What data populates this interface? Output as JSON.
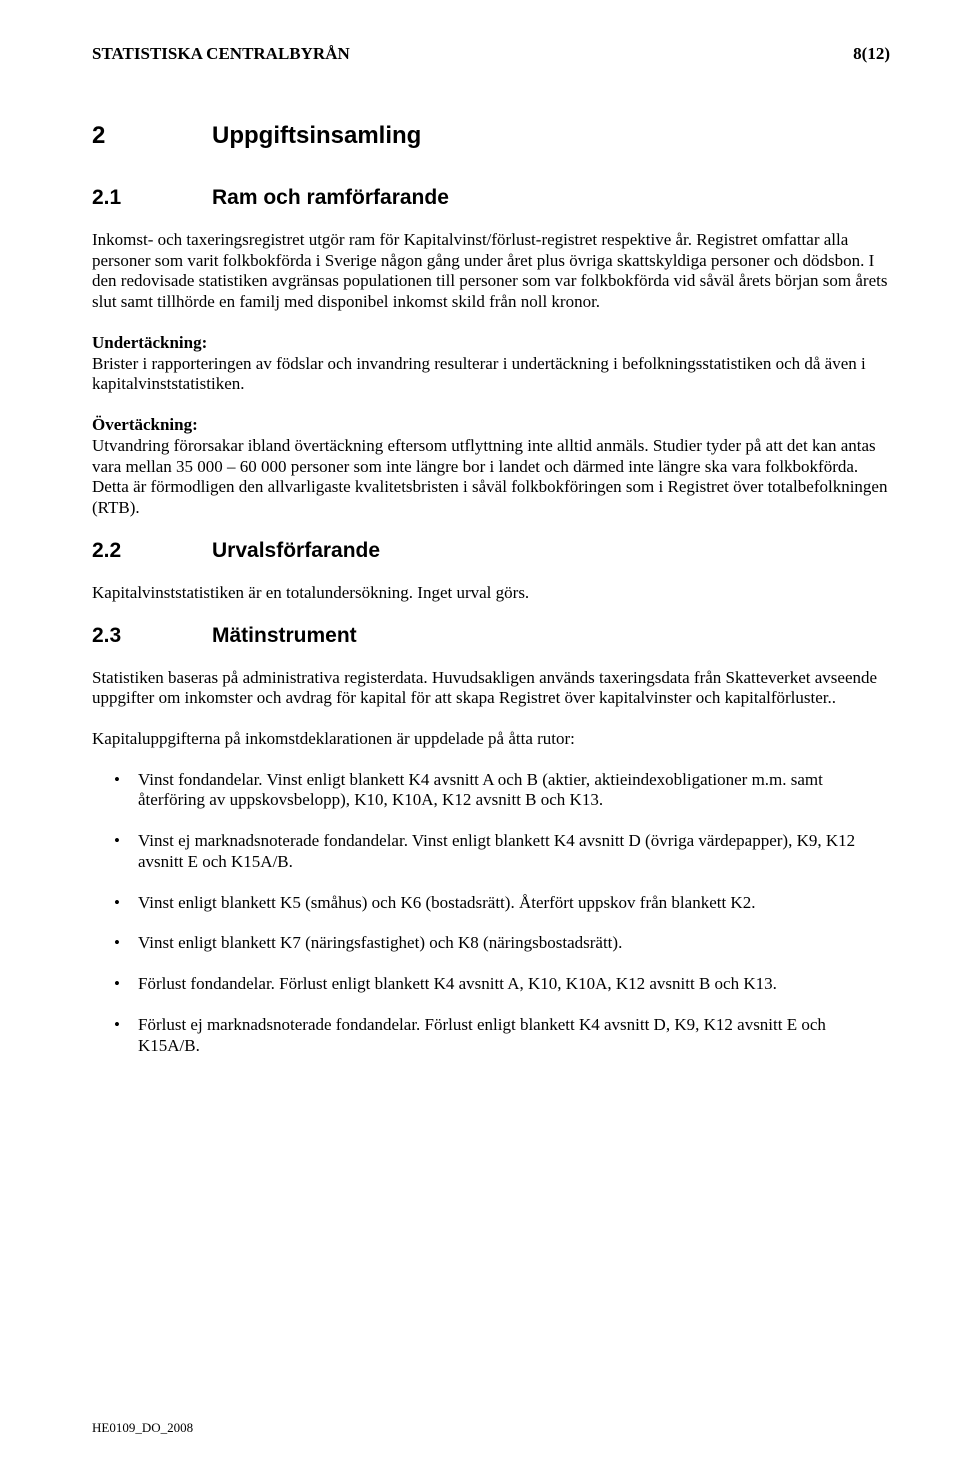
{
  "header": {
    "org": "STATISTISKA CENTRALBYRÅN",
    "pagenum": "8(12)"
  },
  "s2": {
    "num": "2",
    "title": "Uppgiftsinsamling"
  },
  "s21": {
    "num": "2.1",
    "title": "Ram och ramförfarande",
    "p1": "Inkomst- och taxeringsregistret utgör ram för Kapitalvinst/förlust-registret respektive år. Registret omfattar alla personer som varit folkbokförda i Sverige någon gång under året plus övriga skattskyldiga personer och dödsbon. I den redovisade statistiken avgränsas populationen till personer som var folkbokförda vid såväl årets början som årets slut samt tillhörde en familj med disponibel inkomst skild från noll kronor.",
    "under_label": "Undertäckning:",
    "under_text": "Brister i rapporteringen av födslar och invandring resulterar i undertäckning i befolkningsstatistiken och då även i kapitalvinststatistiken.",
    "over_label": "Övertäckning:",
    "over_text": "Utvandring förorsakar ibland övertäckning eftersom utflyttning inte alltid anmäls. Studier tyder på att det kan antas vara mellan 35 000 – 60 000 personer som inte längre bor i landet och därmed inte längre ska vara folkbokförda. Detta är förmodligen den allvarligaste kvalitetsbristen i såväl folkbokföringen som i Registret över totalbefolkningen (RTB)."
  },
  "s22": {
    "num": "2.2",
    "title": "Urvalsförfarande",
    "p1": "Kapitalvinststatistiken är en totalundersökning. Inget urval görs."
  },
  "s23": {
    "num": "2.3",
    "title": "Mätinstrument",
    "p1": "Statistiken baseras på administrativa registerdata. Huvudsakligen används taxeringsdata från Skatteverket avseende uppgifter om inkomster och avdrag för kapital för att skapa Registret över kapitalvinster och kapitalförluster..",
    "p2": "Kapitaluppgifterna på inkomstdeklarationen är uppdelade på åtta rutor:",
    "items": [
      "Vinst fondandelar. Vinst enligt blankett K4 avsnitt A och B (aktier, aktieindexobligationer m.m. samt återföring av uppskovsbelopp), K10, K10A, K12 avsnitt B och K13.",
      "Vinst ej marknadsnoterade fondandelar. Vinst enligt blankett K4 avsnitt D (övriga värdepapper), K9, K12 avsnitt E och K15A/B.",
      "Vinst enligt blankett K5 (småhus) och K6 (bostadsrätt). Återfört uppskov från blankett K2.",
      "Vinst enligt blankett K7 (näringsfastighet) och K8 (näringsbostadsrätt).",
      "Förlust fondandelar. Förlust enligt blankett K4 avsnitt A, K10, K10A, K12 avsnitt B och K13.",
      "Förlust ej marknadsnoterade fondandelar. Förlust enligt blankett K4 avsnitt D, K9, K12 avsnitt E och K15A/B."
    ]
  },
  "footer": "HE0109_DO_2008"
}
